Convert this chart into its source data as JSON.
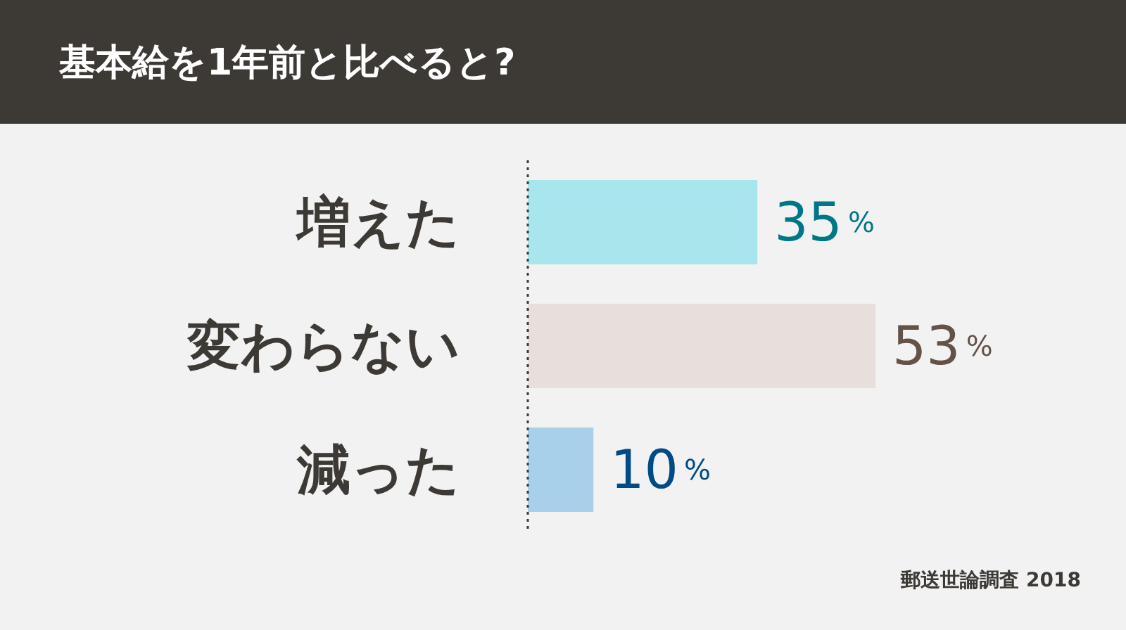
{
  "chart_data": {
    "type": "bar",
    "orientation": "horizontal",
    "title": "基本給を1年前と比べると?",
    "categories": [
      "増えた",
      "変わらない",
      "減った"
    ],
    "values": [
      35,
      53,
      10
    ],
    "colors": [
      "#a9e5ec",
      "#e7dfdb",
      "#a9d0ea"
    ],
    "value_labels": [
      "35%",
      "53%",
      "10%"
    ],
    "annotations": [
      "郵送世論調査 2018"
    ],
    "grid": false,
    "legend": false
  }
}
